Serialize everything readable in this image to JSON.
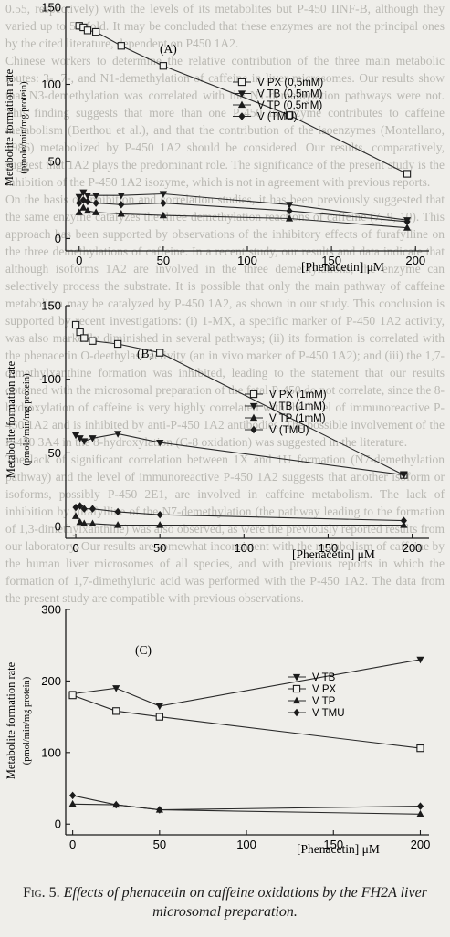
{
  "background_text": [
    "0.55, respectively) with the levels of its metabolites but P-450 IINF-B, although they varied up to 50-fold. It may be concluded that these enzymes are not the principal ones by the cited literature, dependent on P450 1A2.",
    "Chinese workers to determine the relative contribution of the three main metabolic routes: 3-, 7-, and N1-demethylation of caffeine in liver microsomes. Our results show that N3-demethylation was correlated with the N1-demethylation pathways were not. This finding suggests that more than one P-450 isoenzyme contributes to caffeine metabolism (Berthou et al.), and that the contribution of the isoenzymes (Montellano, 1986) metabolized by P-450 1A2 should be considered. Our results, comparatively, suggest that 1A2 plays the predominant role. The significance of the present study is the inhibition of the P-450 1A2 isozyme, which is not in agreement with previous reports.",
    "On the basis of inhibition and correlation studies, it has been previously suggested that the same enzyme catalyzes the three demethylation reactions of caffeine (7, 9, 10). This approach has been supported by observations of the inhibitory effects of furafylline on the three demethylations of caffeine. In a recent study, our results and data indicate that although isoforms 1A2 are involved in the three demethylations, the enzyme can selectively process the substrate. It is possible that only the main pathway of caffeine metabolism may be catalyzed by P-450 1A2, as shown in our study. This conclusion is supported by recent investigations: (i) 1-MX, a specific marker of P-450 1A2 activity, was also markedly diminished in several pathways; (ii) its formation is correlated with the phenacetin O-deethylase activity (an in vivo marker of P-450 1A2); and (iii) the 1,7-dimethylxanthine formation was inhibited, leading to the statement that our results obtained with the microsomal preparation of the fetal P-450 do not correlate, since the 8-hydroxylation of caffeine is very highly correlated with the level of immunoreactive P-450 1A2 and is inhibited by anti-P-450 1A2 antibodies. The possible involvement of the P-450 3A4 in the 8-hydroxylation (C-8 oxidation) was suggested in the literature.",
    "The lack of significant correlation between 1X and 1U formation (N7-demethylation pathway) and the level of immunoreactive P-450 1A2 suggests that another isoform or isoforms, possibly P-450 2E1, are involved in caffeine metabolism. The lack of inhibition by furafylline of the N7-demethylation (the pathway leading to the formation of 1,3-dimethylxanthine) was also observed, as were the previously reported results from our laboratory. Our results are somewhat inconsistent with the metabolism of caffeine by the human liver microsomes of all species, and with previous reports in which the formation of 1,7-dimethyluric acid was performed with the P-450 1A2. The data from the present study are compatible with previous observations."
  ],
  "caption": {
    "fig_label": "Fig. 5.",
    "text": "Effects of phenacetin on caffeine oxidations by the FH2A liver microsomal preparation."
  },
  "chart_data": [
    {
      "type": "line",
      "panel_label": "(A)",
      "ylabel_line1": "Metabolite formation rate",
      "ylabel_line2": "(pmole/min/mg protein)",
      "xlabel": "[Phenacetin] μM",
      "xlim": [
        -8,
        208
      ],
      "ylim": [
        -8,
        150
      ],
      "x_ticks": [
        0,
        50,
        100,
        150,
        200
      ],
      "y_ticks": [
        0,
        50,
        100,
        150
      ],
      "x": [
        0,
        2.5,
        5,
        10,
        25,
        50,
        125,
        195
      ],
      "legend_position": "top-right",
      "series": [
        {
          "name": "V PX (0,5mM)",
          "marker": "square",
          "values": [
            138,
            137,
            135,
            134,
            125,
            112,
            80,
            42
          ]
        },
        {
          "name": "V TB (0,5mM)",
          "marker": "tri-down",
          "values": [
            27,
            30,
            28,
            28,
            28,
            29,
            22,
            12
          ]
        },
        {
          "name": "V TP (0,5mM)",
          "marker": "tri-up",
          "values": [
            17,
            20,
            18,
            17,
            16,
            15,
            13,
            7
          ]
        },
        {
          "name": "V (TMU)",
          "marker": "diamond",
          "values": [
            23,
            25,
            24,
            23,
            22,
            23,
            18,
            11
          ]
        }
      ]
    },
    {
      "type": "line",
      "panel_label": "(B)",
      "ylabel_line1": "Metabolite formation rate",
      "ylabel_line2": "(pmole/min/mg protein)",
      "xlabel": "[Phenacetin] μM",
      "xlim": [
        -6,
        210
      ],
      "ylim": [
        -8,
        150
      ],
      "x_ticks": [
        0,
        50,
        100,
        150,
        200
      ],
      "y_ticks": [
        0,
        50,
        100,
        150
      ],
      "x": [
        0,
        2.5,
        5,
        10,
        25,
        50,
        195
      ],
      "legend_position": "top-right",
      "series": [
        {
          "name": "V PX (1mM)",
          "marker": "square",
          "values": [
            137,
            132,
            128,
            126,
            124,
            118,
            35
          ]
        },
        {
          "name": "V TB (1mM)",
          "marker": "tri-down",
          "values": [
            62,
            60,
            58,
            60,
            63,
            57,
            35
          ]
        },
        {
          "name": "V TP (1mM)",
          "marker": "tri-up",
          "values": [
            7,
            3,
            2,
            2,
            1,
            1,
            1
          ]
        },
        {
          "name": "V (TMU)",
          "marker": "diamond",
          "values": [
            13,
            14,
            12,
            12,
            10,
            8,
            4
          ]
        }
      ]
    },
    {
      "type": "line",
      "panel_label": "(C)",
      "ylabel_line1": "Metabolite formation rate",
      "ylabel_line2": "(pmol/min/mg protein)",
      "xlabel": "[Phenacetin] μM",
      "xlim": [
        -4,
        205
      ],
      "ylim": [
        -15,
        300
      ],
      "x_ticks": [
        0,
        50,
        100,
        150,
        200
      ],
      "y_ticks": [
        0,
        100,
        200,
        300
      ],
      "x": [
        0,
        25,
        50,
        200
      ],
      "legend_position": "top-right",
      "series": [
        {
          "name": "V TB",
          "marker": "tri-down",
          "values": [
            182,
            190,
            165,
            230
          ]
        },
        {
          "name": "V PX",
          "marker": "square",
          "values": [
            180,
            158,
            150,
            106
          ]
        },
        {
          "name": "V TP",
          "marker": "tri-up",
          "values": [
            28,
            27,
            20,
            14
          ]
        },
        {
          "name": "V TMU",
          "marker": "diamond",
          "values": [
            40,
            27,
            20,
            25
          ]
        }
      ]
    }
  ]
}
